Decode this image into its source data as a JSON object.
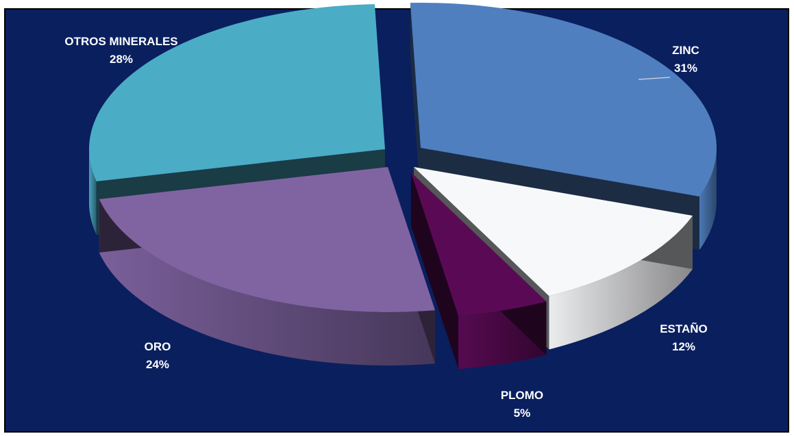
{
  "chart_data": {
    "type": "pie",
    "categories": [
      "ZINC",
      "ESTAÑO",
      "PLOMO",
      "ORO",
      "OTROS MINERALES"
    ],
    "values": [
      31,
      12,
      5,
      24,
      28
    ],
    "labels": [
      "31%",
      "12%",
      "5%",
      "24%",
      "28%"
    ],
    "colors": {
      "ZINC": "#4f7fbf",
      "ESTAÑO": "#f7f8fa",
      "PLOMO": "#5a0a55",
      "ORO": "#8064a2",
      "OTROS MINERALES": "#4bacc6"
    },
    "background": "#0a1f5e",
    "style": "3d-exploded",
    "legend": "none",
    "title": ""
  }
}
